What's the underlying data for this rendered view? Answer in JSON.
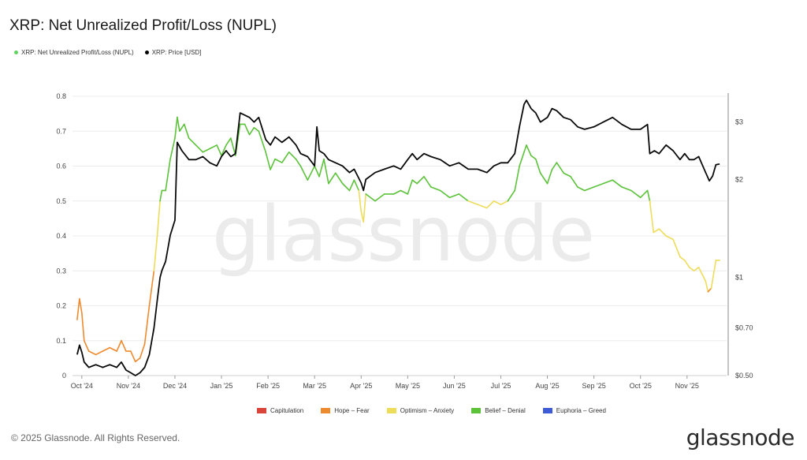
{
  "title": "XRP: Net Unrealized Profit/Loss (NUPL)",
  "legend_top": [
    {
      "label": "XRP: Net Unrealized Profit/Loss (NUPL)",
      "color": "#5fd35f"
    },
    {
      "label": "XRP: Price [USD]",
      "color": "#000000"
    }
  ],
  "legend_bottom": [
    {
      "label": "Capitulation",
      "color": "#d9453b"
    },
    {
      "label": "Hope – Fear",
      "color": "#ee8a2e"
    },
    {
      "label": "Optimism – Anxiety",
      "color": "#eedc5b"
    },
    {
      "label": "Belief – Denial",
      "color": "#5cc23a"
    },
    {
      "label": "Euphoria – Greed",
      "color": "#3d5bd6"
    }
  ],
  "watermark": "glassnode",
  "copyright": "© 2025 Glassnode. All Rights Reserved.",
  "brand": "glassnode",
  "chart_data": {
    "type": "line",
    "x_tick_labels": [
      "Oct '24",
      "Nov '24",
      "Dec '24",
      "Jan '25",
      "Feb '25",
      "Mar '25",
      "Apr '25",
      "May '25",
      "Jun '25",
      "Jul '25",
      "Aug '25",
      "Sep '25",
      "Oct '25",
      "Nov '25"
    ],
    "y_left": {
      "ticks": [
        0,
        0.1,
        0.2,
        0.3,
        0.4,
        0.5,
        0.6,
        0.7,
        0.8
      ],
      "range": [
        0,
        0.8
      ]
    },
    "y_right": {
      "scale": "log",
      "range": [
        0.5,
        3.6
      ],
      "ticks": [
        {
          "value": 0.5,
          "label": "$0.50"
        },
        {
          "value": 0.7,
          "label": "$0.70"
        },
        {
          "value": 1,
          "label": "$1"
        },
        {
          "value": 2,
          "label": "$2"
        },
        {
          "value": 3,
          "label": "$3"
        }
      ]
    },
    "x_range": [
      -0.2,
      13.85
    ],
    "zones": [
      {
        "name": "Capitulation",
        "max": 0,
        "color": "#d9453b"
      },
      {
        "name": "Hope – Fear",
        "max": 0.25,
        "color": "#ee8a2e"
      },
      {
        "name": "Optimism – Anxiety",
        "max": 0.5,
        "color": "#eedc5b"
      },
      {
        "name": "Belief – Denial",
        "max": 0.75,
        "color": "#5cc23a"
      },
      {
        "name": "Euphoria – Greed",
        "max": 1,
        "color": "#3d5bd6"
      }
    ],
    "series": [
      {
        "name": "XRP: Net Unrealized Profit/Loss (NUPL)",
        "axis": "left",
        "points": [
          [
            -0.1,
            0.16
          ],
          [
            -0.05,
            0.22
          ],
          [
            0,
            0.18
          ],
          [
            0.05,
            0.1
          ],
          [
            0.15,
            0.07
          ],
          [
            0.3,
            0.06
          ],
          [
            0.45,
            0.07
          ],
          [
            0.6,
            0.08
          ],
          [
            0.75,
            0.07
          ],
          [
            0.85,
            0.1
          ],
          [
            0.95,
            0.07
          ],
          [
            1.05,
            0.07
          ],
          [
            1.15,
            0.04
          ],
          [
            1.25,
            0.05
          ],
          [
            1.35,
            0.09
          ],
          [
            1.45,
            0.2
          ],
          [
            1.55,
            0.3
          ],
          [
            1.62,
            0.4
          ],
          [
            1.68,
            0.5
          ],
          [
            1.72,
            0.53
          ],
          [
            1.8,
            0.53
          ],
          [
            1.9,
            0.62
          ],
          [
            2.0,
            0.68
          ],
          [
            2.05,
            0.74
          ],
          [
            2.1,
            0.7
          ],
          [
            2.2,
            0.72
          ],
          [
            2.3,
            0.68
          ],
          [
            2.45,
            0.66
          ],
          [
            2.6,
            0.64
          ],
          [
            2.75,
            0.65
          ],
          [
            2.9,
            0.66
          ],
          [
            3.0,
            0.63
          ],
          [
            3.1,
            0.66
          ],
          [
            3.2,
            0.68
          ],
          [
            3.3,
            0.63
          ],
          [
            3.4,
            0.72
          ],
          [
            3.5,
            0.72
          ],
          [
            3.6,
            0.69
          ],
          [
            3.7,
            0.71
          ],
          [
            3.8,
            0.7
          ],
          [
            3.95,
            0.64
          ],
          [
            4.05,
            0.59
          ],
          [
            4.15,
            0.62
          ],
          [
            4.3,
            0.61
          ],
          [
            4.45,
            0.64
          ],
          [
            4.6,
            0.62
          ],
          [
            4.7,
            0.6
          ],
          [
            4.85,
            0.56
          ],
          [
            5.0,
            0.6
          ],
          [
            5.1,
            0.57
          ],
          [
            5.2,
            0.62
          ],
          [
            5.3,
            0.55
          ],
          [
            5.45,
            0.58
          ],
          [
            5.6,
            0.55
          ],
          [
            5.75,
            0.53
          ],
          [
            5.85,
            0.56
          ],
          [
            5.95,
            0.53
          ],
          [
            6.0,
            0.47
          ],
          [
            6.05,
            0.44
          ],
          [
            6.1,
            0.52
          ],
          [
            6.3,
            0.5
          ],
          [
            6.5,
            0.52
          ],
          [
            6.7,
            0.52
          ],
          [
            6.85,
            0.53
          ],
          [
            7.0,
            0.52
          ],
          [
            7.1,
            0.56
          ],
          [
            7.2,
            0.55
          ],
          [
            7.35,
            0.57
          ],
          [
            7.5,
            0.54
          ],
          [
            7.7,
            0.53
          ],
          [
            7.9,
            0.51
          ],
          [
            8.1,
            0.52
          ],
          [
            8.3,
            0.5
          ],
          [
            8.5,
            0.49
          ],
          [
            8.7,
            0.48
          ],
          [
            8.85,
            0.5
          ],
          [
            9.0,
            0.49
          ],
          [
            9.15,
            0.5
          ],
          [
            9.3,
            0.53
          ],
          [
            9.4,
            0.6
          ],
          [
            9.5,
            0.64
          ],
          [
            9.55,
            0.66
          ],
          [
            9.65,
            0.63
          ],
          [
            9.75,
            0.62
          ],
          [
            9.85,
            0.58
          ],
          [
            10.0,
            0.55
          ],
          [
            10.1,
            0.59
          ],
          [
            10.2,
            0.61
          ],
          [
            10.35,
            0.58
          ],
          [
            10.5,
            0.57
          ],
          [
            10.65,
            0.54
          ],
          [
            10.8,
            0.53
          ],
          [
            11.0,
            0.54
          ],
          [
            11.2,
            0.55
          ],
          [
            11.4,
            0.56
          ],
          [
            11.6,
            0.54
          ],
          [
            11.8,
            0.53
          ],
          [
            12.0,
            0.51
          ],
          [
            12.15,
            0.53
          ],
          [
            12.2,
            0.5
          ],
          [
            12.28,
            0.41
          ],
          [
            12.4,
            0.42
          ],
          [
            12.55,
            0.4
          ],
          [
            12.7,
            0.39
          ],
          [
            12.85,
            0.34
          ],
          [
            12.95,
            0.33
          ],
          [
            13.05,
            0.31
          ],
          [
            13.15,
            0.3
          ],
          [
            13.25,
            0.31
          ],
          [
            13.4,
            0.27
          ],
          [
            13.45,
            0.24
          ],
          [
            13.52,
            0.25
          ],
          [
            13.62,
            0.33
          ],
          [
            13.7,
            0.33
          ]
        ]
      },
      {
        "name": "XRP: Price [USD]",
        "axis": "right",
        "points": [
          [
            -0.1,
            0.58
          ],
          [
            -0.05,
            0.62
          ],
          [
            0,
            0.59
          ],
          [
            0.05,
            0.55
          ],
          [
            0.15,
            0.53
          ],
          [
            0.3,
            0.54
          ],
          [
            0.45,
            0.53
          ],
          [
            0.6,
            0.54
          ],
          [
            0.75,
            0.53
          ],
          [
            0.85,
            0.55
          ],
          [
            0.95,
            0.52
          ],
          [
            1.05,
            0.51
          ],
          [
            1.15,
            0.5
          ],
          [
            1.25,
            0.51
          ],
          [
            1.35,
            0.53
          ],
          [
            1.45,
            0.58
          ],
          [
            1.55,
            0.7
          ],
          [
            1.62,
            0.85
          ],
          [
            1.68,
            1.0
          ],
          [
            1.72,
            1.05
          ],
          [
            1.8,
            1.12
          ],
          [
            1.9,
            1.35
          ],
          [
            2.0,
            1.5
          ],
          [
            2.05,
            2.6
          ],
          [
            2.15,
            2.45
          ],
          [
            2.3,
            2.3
          ],
          [
            2.45,
            2.3
          ],
          [
            2.6,
            2.35
          ],
          [
            2.75,
            2.25
          ],
          [
            2.9,
            2.2
          ],
          [
            3.0,
            2.35
          ],
          [
            3.1,
            2.45
          ],
          [
            3.2,
            2.35
          ],
          [
            3.3,
            2.4
          ],
          [
            3.4,
            3.2
          ],
          [
            3.5,
            3.15
          ],
          [
            3.6,
            3.1
          ],
          [
            3.7,
            3.0
          ],
          [
            3.8,
            3.1
          ],
          [
            3.95,
            2.65
          ],
          [
            4.05,
            2.55
          ],
          [
            4.15,
            2.7
          ],
          [
            4.3,
            2.6
          ],
          [
            4.45,
            2.7
          ],
          [
            4.6,
            2.55
          ],
          [
            4.7,
            2.4
          ],
          [
            4.85,
            2.35
          ],
          [
            5.0,
            2.2
          ],
          [
            5.05,
            2.9
          ],
          [
            5.1,
            2.45
          ],
          [
            5.2,
            2.4
          ],
          [
            5.3,
            2.3
          ],
          [
            5.45,
            2.25
          ],
          [
            5.6,
            2.2
          ],
          [
            5.75,
            2.1
          ],
          [
            5.85,
            2.15
          ],
          [
            6.0,
            1.95
          ],
          [
            6.05,
            1.85
          ],
          [
            6.1,
            2.0
          ],
          [
            6.3,
            2.1
          ],
          [
            6.5,
            2.15
          ],
          [
            6.7,
            2.2
          ],
          [
            6.85,
            2.15
          ],
          [
            7.0,
            2.3
          ],
          [
            7.1,
            2.4
          ],
          [
            7.2,
            2.3
          ],
          [
            7.35,
            2.4
          ],
          [
            7.5,
            2.35
          ],
          [
            7.7,
            2.3
          ],
          [
            7.9,
            2.2
          ],
          [
            8.1,
            2.25
          ],
          [
            8.3,
            2.15
          ],
          [
            8.5,
            2.15
          ],
          [
            8.7,
            2.1
          ],
          [
            8.85,
            2.2
          ],
          [
            9.0,
            2.25
          ],
          [
            9.15,
            2.25
          ],
          [
            9.3,
            2.4
          ],
          [
            9.4,
            2.9
          ],
          [
            9.5,
            3.4
          ],
          [
            9.55,
            3.5
          ],
          [
            9.65,
            3.3
          ],
          [
            9.75,
            3.2
          ],
          [
            9.85,
            3.0
          ],
          [
            10.0,
            3.1
          ],
          [
            10.1,
            3.3
          ],
          [
            10.2,
            3.25
          ],
          [
            10.35,
            3.1
          ],
          [
            10.5,
            3.05
          ],
          [
            10.65,
            2.9
          ],
          [
            10.8,
            2.85
          ],
          [
            11.0,
            2.9
          ],
          [
            11.2,
            3.0
          ],
          [
            11.4,
            3.1
          ],
          [
            11.6,
            2.95
          ],
          [
            11.8,
            2.85
          ],
          [
            12.0,
            2.85
          ],
          [
            12.15,
            2.95
          ],
          [
            12.2,
            2.4
          ],
          [
            12.3,
            2.45
          ],
          [
            12.4,
            2.4
          ],
          [
            12.55,
            2.55
          ],
          [
            12.7,
            2.45
          ],
          [
            12.85,
            2.3
          ],
          [
            12.95,
            2.4
          ],
          [
            13.05,
            2.3
          ],
          [
            13.15,
            2.3
          ],
          [
            13.25,
            2.35
          ],
          [
            13.4,
            2.1
          ],
          [
            13.48,
            1.98
          ],
          [
            13.55,
            2.05
          ],
          [
            13.62,
            2.22
          ],
          [
            13.7,
            2.23
          ]
        ]
      }
    ]
  }
}
